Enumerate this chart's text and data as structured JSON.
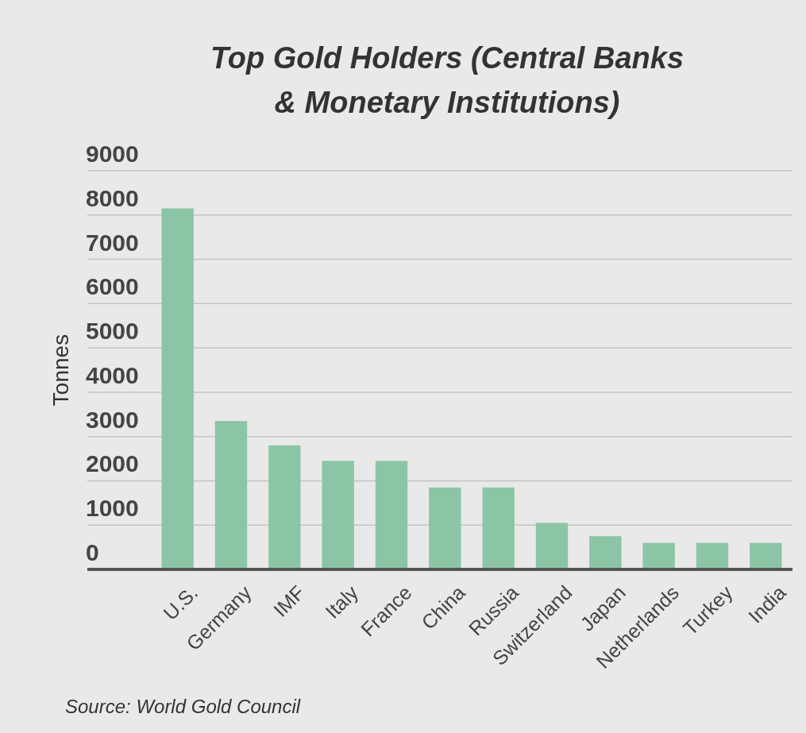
{
  "chart_data": {
    "type": "bar",
    "title": "Top Gold Holders (Central Banks\n& Monetary Institutions)",
    "ylabel": "Tonnes",
    "categories": [
      "U.S.",
      "Germany",
      "IMF",
      "Italy",
      "France",
      "China",
      "Russia",
      "Switzerland",
      "Japan",
      "Netherlands",
      "Turkey",
      "India"
    ],
    "values": [
      8150,
      3350,
      2800,
      2450,
      2450,
      1850,
      1850,
      1050,
      750,
      600,
      600,
      600
    ],
    "color": "#8cc5a5",
    "ylim": [
      0,
      9000
    ],
    "yticks": [
      0,
      1000,
      2000,
      3000,
      4000,
      5000,
      6000,
      7000,
      8000,
      9000
    ],
    "grid": "y",
    "annotations": [
      "Source: World Gold Council"
    ]
  }
}
